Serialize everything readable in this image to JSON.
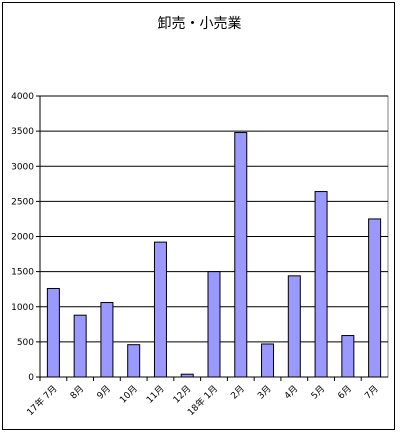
{
  "chart_data": {
    "type": "bar",
    "title": "卸売・小売業",
    "xlabel": "",
    "ylabel": "",
    "ylim": [
      0,
      4000
    ],
    "yticks": [
      0,
      500,
      1000,
      1500,
      2000,
      2500,
      3000,
      3500,
      4000
    ],
    "grid": "horizontal",
    "categories": [
      "17年 7月",
      "8月",
      "9月",
      "10月",
      "11月",
      "12月",
      "18年 1月",
      "2月",
      "3月",
      "4月",
      "5月",
      "6月",
      "7月"
    ],
    "values": [
      1260,
      880,
      1060,
      460,
      1920,
      40,
      1500,
      3480,
      470,
      1440,
      2640,
      590,
      2250
    ],
    "colors": {
      "bar_fill": "#9999ff",
      "bar_stroke": "#000000",
      "grid": "#000000"
    }
  }
}
